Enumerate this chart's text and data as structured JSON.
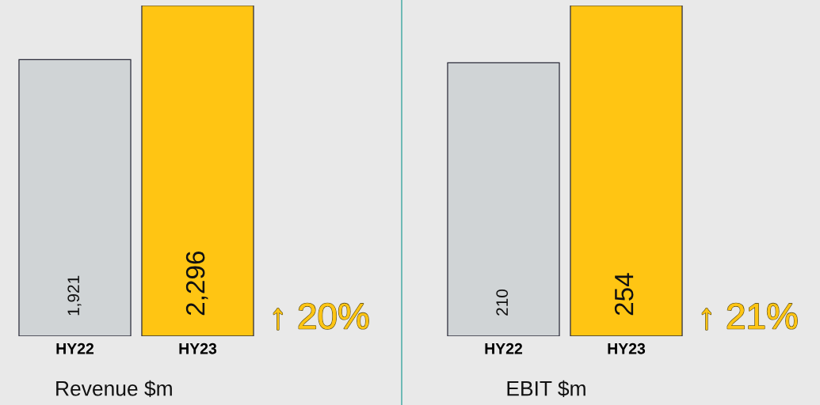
{
  "chart_data": [
    {
      "type": "bar",
      "title": "Revenue $m",
      "categories": [
        "HY22",
        "HY23"
      ],
      "values": [
        1921,
        2296
      ],
      "value_labels": [
        "1,921",
        "2,296"
      ],
      "colors": [
        "#d0d4d6",
        "#ffc513"
      ],
      "tick_labels": "x",
      "grid": false,
      "legend": false,
      "annotations": [
        "↑ 20%"
      ]
    },
    {
      "type": "bar",
      "title": "EBIT $m",
      "categories": [
        "HY22",
        "HY23"
      ],
      "values": [
        210,
        254
      ],
      "value_labels": [
        "210",
        "254"
      ],
      "colors": [
        "#d0d4d6",
        "#ffc513"
      ],
      "tick_labels": "x",
      "grid": false,
      "legend": false,
      "annotations": [
        "↑ 21%"
      ]
    }
  ]
}
